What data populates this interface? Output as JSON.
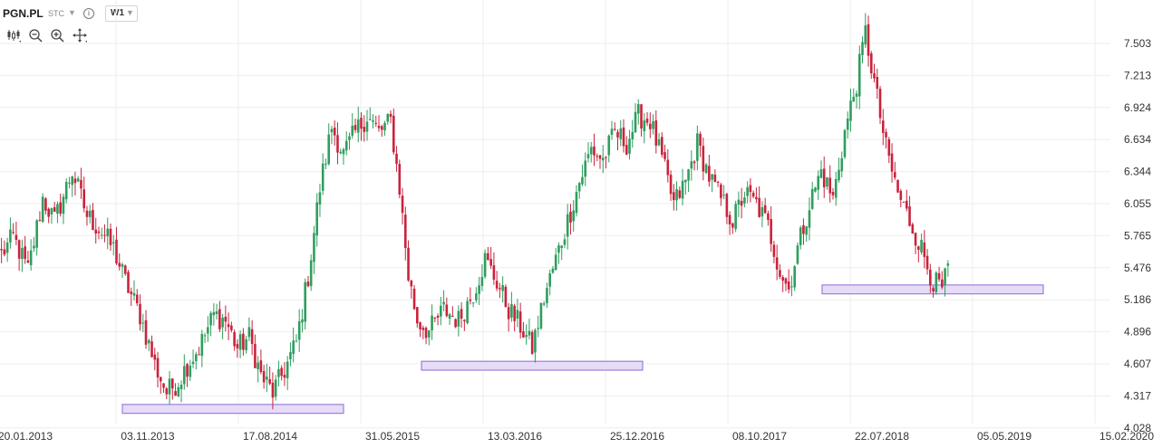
{
  "header": {
    "symbol": "PGN.PL",
    "market": "STC",
    "interval": "W1"
  },
  "toolbar": {
    "tools": [
      "candlestick-type-icon",
      "zoom-out-icon",
      "zoom-in-icon",
      "crosshair-move-icon"
    ]
  },
  "colors": {
    "up": "#2e9e5e",
    "down": "#c9233c",
    "grid": "#eeeeee",
    "zone_fill": "#e7dcf8",
    "zone_stroke": "#9b7fd9",
    "text": "#333333"
  },
  "chart_data": {
    "type": "candlestick",
    "y_ticks": [
      "7.503",
      "7.213",
      "6.924",
      "6.634",
      "6.344",
      "6.055",
      "5.765",
      "5.476",
      "5.186",
      "4.896",
      "4.607",
      "4.317",
      "4.028"
    ],
    "x_ticks": [
      "20.01.2013",
      "03.11.2013",
      "17.08.2014",
      "31.05.2015",
      "13.03.2016",
      "25.12.2016",
      "08.10.2017",
      "22.07.2018",
      "05.05.2019",
      "15.02.2020"
    ],
    "ylim": [
      4.028,
      7.793
    ],
    "grid": true,
    "support_zones": [
      {
        "from": "03.11.2013",
        "to": "31.05.2015",
        "low": 4.16,
        "high": 4.24
      },
      {
        "from": "31.05.2015",
        "to": "25.12.2016",
        "low": 4.55,
        "high": 4.63
      },
      {
        "from": "22.07.2018",
        "to": "05.05.2019",
        "low": 5.24,
        "high": 5.32
      }
    ],
    "close_path": [
      [
        0,
        5.6
      ],
      [
        4,
        5.75
      ],
      [
        9,
        5.45
      ],
      [
        14,
        6.1
      ],
      [
        18,
        5.9
      ],
      [
        24,
        6.35
      ],
      [
        29,
        5.95
      ],
      [
        34,
        5.8
      ],
      [
        38,
        5.65
      ],
      [
        42,
        5.35
      ],
      [
        47,
        5.05
      ],
      [
        52,
        4.6
      ],
      [
        56,
        4.35
      ],
      [
        60,
        4.45
      ],
      [
        63,
        4.6
      ],
      [
        67,
        4.75
      ],
      [
        72,
        5.05
      ],
      [
        76,
        5.0
      ],
      [
        80,
        4.75
      ],
      [
        84,
        4.85
      ],
      [
        88,
        4.5
      ],
      [
        92,
        4.35
      ],
      [
        96,
        4.55
      ],
      [
        100,
        4.8
      ],
      [
        104,
        5.4
      ],
      [
        108,
        6.2
      ],
      [
        112,
        6.75
      ],
      [
        116,
        6.5
      ],
      [
        120,
        6.7
      ],
      [
        124,
        6.85
      ],
      [
        128,
        6.7
      ],
      [
        132,
        6.8
      ],
      [
        135,
        6.2
      ],
      [
        138,
        5.4
      ],
      [
        141,
        5.0
      ],
      [
        145,
        4.9
      ],
      [
        150,
        5.1
      ],
      [
        155,
        5.0
      ],
      [
        160,
        5.25
      ],
      [
        164,
        5.55
      ],
      [
        168,
        5.35
      ],
      [
        172,
        5.1
      ],
      [
        176,
        4.95
      ],
      [
        180,
        4.75
      ],
      [
        184,
        5.2
      ],
      [
        188,
        5.55
      ],
      [
        192,
        5.9
      ],
      [
        196,
        6.25
      ],
      [
        200,
        6.55
      ],
      [
        204,
        6.45
      ],
      [
        208,
        6.7
      ],
      [
        212,
        6.6
      ],
      [
        216,
        6.85
      ],
      [
        220,
        6.8
      ],
      [
        224,
        6.45
      ],
      [
        228,
        6.05
      ],
      [
        232,
        6.25
      ],
      [
        236,
        6.6
      ],
      [
        240,
        6.3
      ],
      [
        244,
        6.1
      ],
      [
        248,
        5.9
      ],
      [
        252,
        6.15
      ],
      [
        256,
        6.05
      ],
      [
        260,
        5.85
      ],
      [
        264,
        5.45
      ],
      [
        267,
        5.28
      ],
      [
        270,
        5.65
      ],
      [
        274,
        6.05
      ],
      [
        278,
        6.35
      ],
      [
        282,
        6.1
      ],
      [
        286,
        6.7
      ],
      [
        290,
        7.15
      ],
      [
        293,
        7.6
      ],
      [
        297,
        7.0
      ],
      [
        300,
        6.55
      ],
      [
        304,
        6.15
      ],
      [
        308,
        5.9
      ],
      [
        312,
        5.65
      ],
      [
        316,
        5.35
      ],
      [
        319,
        5.28
      ],
      [
        321,
        5.45
      ]
    ],
    "candle_count": 322,
    "weeks_per_x_tick": 41.5
  }
}
